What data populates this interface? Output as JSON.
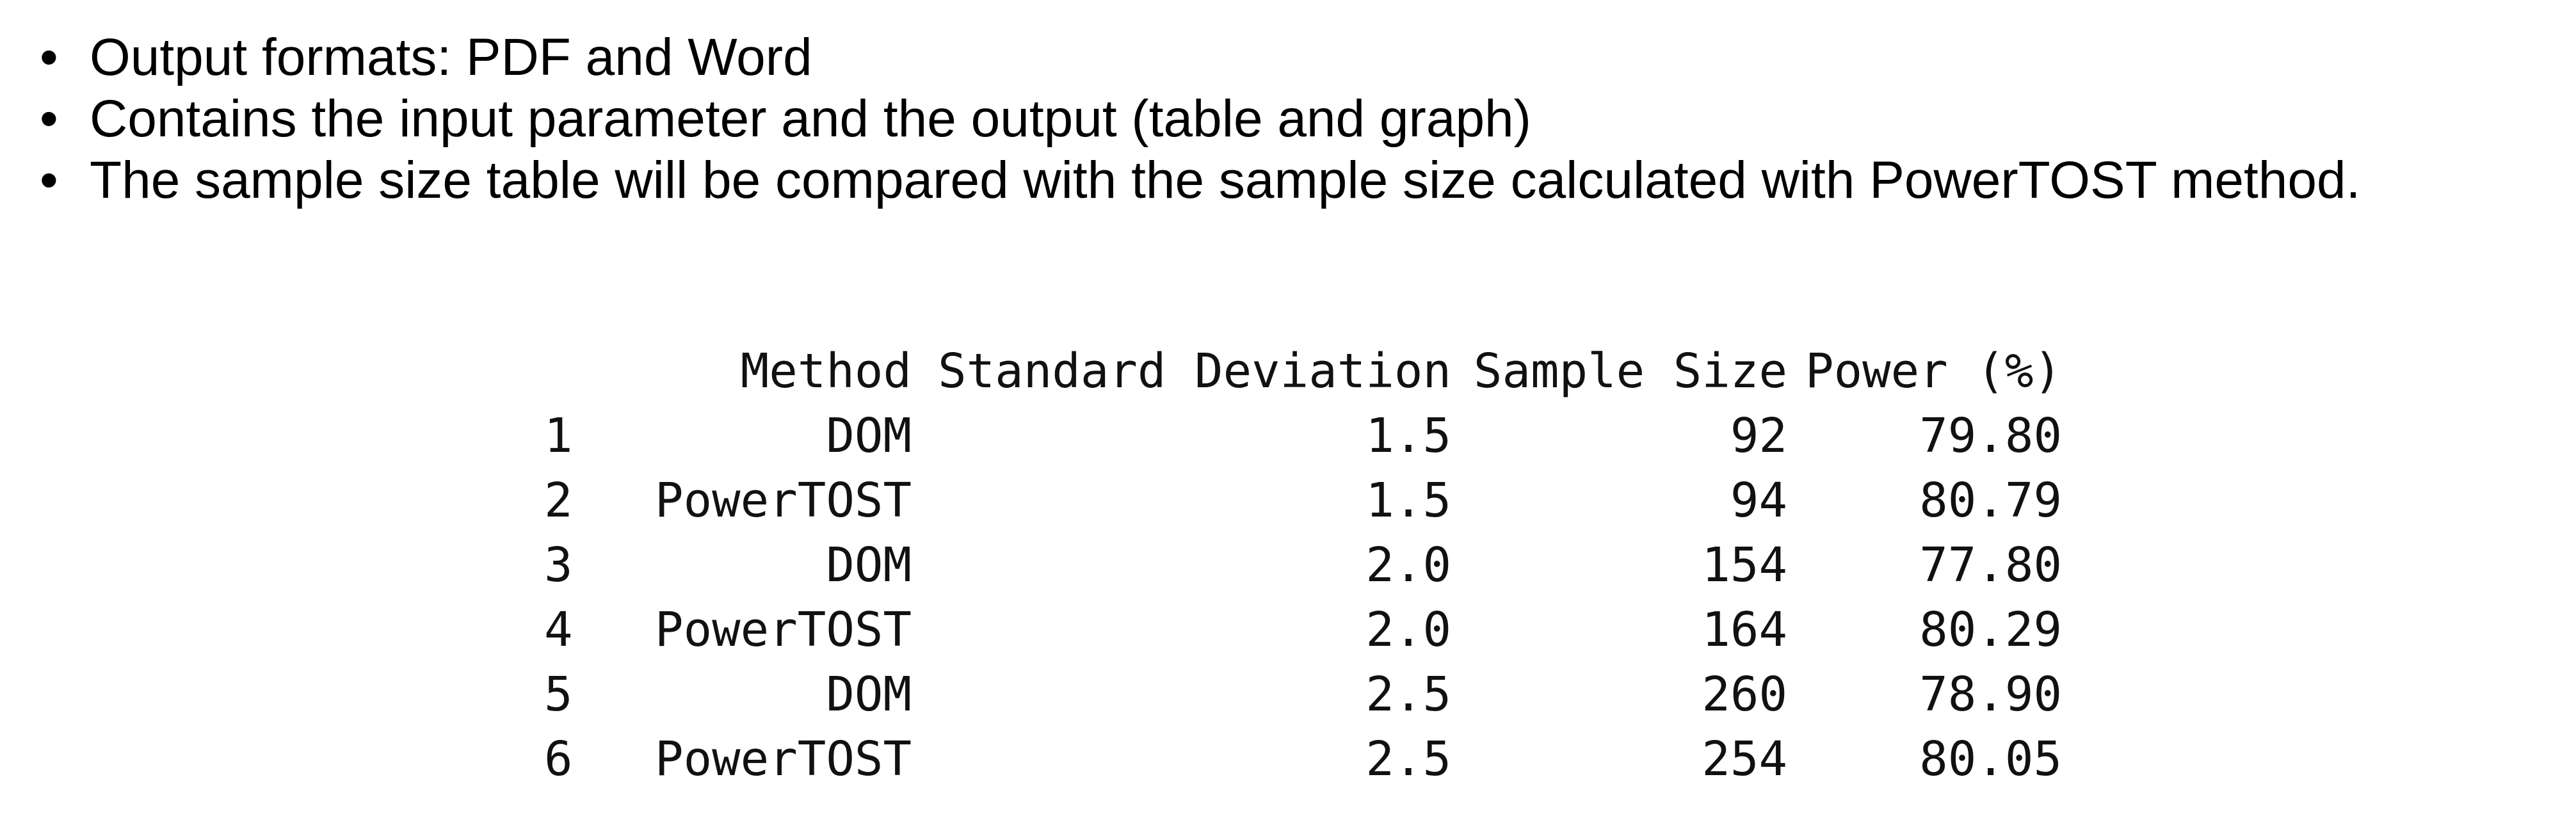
{
  "bullets": [
    "Output formats: PDF and Word",
    "Contains the input parameter and the output (table and graph)",
    "The sample size table will be compared with the sample size calculated with PowerTOST method."
  ],
  "bullet_glyph": "•",
  "table": {
    "headers": [
      "",
      "Method",
      "Standard Deviation",
      "Sample Size",
      "Power (%)"
    ],
    "rows": [
      [
        "1",
        "DOM",
        "1.5",
        "92",
        "79.80"
      ],
      [
        "2",
        "PowerTOST",
        "1.5",
        "94",
        "80.79"
      ],
      [
        "3",
        "DOM",
        "2.0",
        "154",
        "77.80"
      ],
      [
        "4",
        "PowerTOST",
        "2.0",
        "164",
        "80.29"
      ],
      [
        "5",
        "DOM",
        "2.5",
        "260",
        "78.90"
      ],
      [
        "6",
        "PowerTOST",
        "2.5",
        "254",
        "80.05"
      ]
    ]
  }
}
